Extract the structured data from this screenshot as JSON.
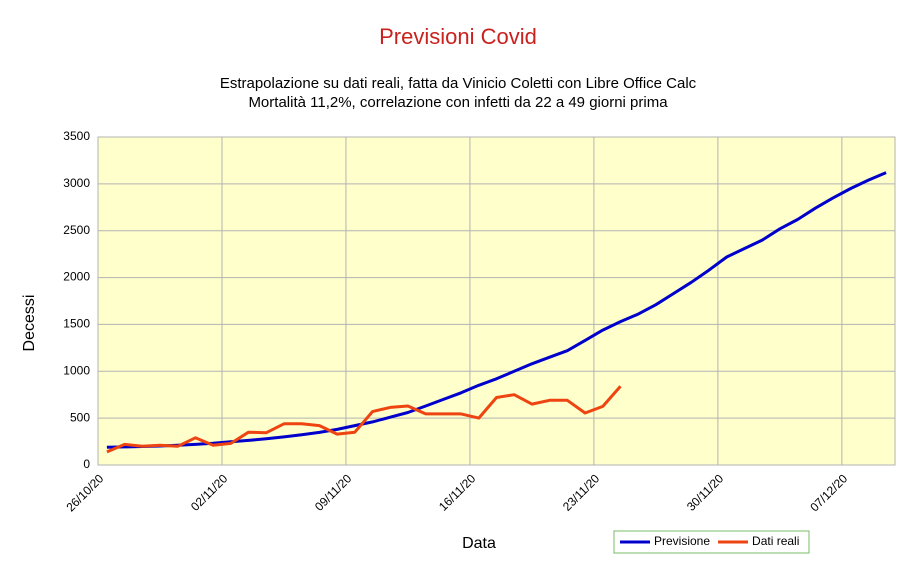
{
  "chart_data": {
    "type": "line",
    "title": "Previsioni Covid",
    "subtitle": [
      "Estrapolazione su dati reali, fatta da Vinicio Coletti con Libre Office Calc",
      "Mortalità 11,2%, correlazione con infetti da 22 a 49 giorni prima"
    ],
    "x_label": "Data",
    "y_label": "Decessi",
    "categories": [
      "26/10/20",
      null,
      null,
      null,
      null,
      null,
      null,
      "02/11/20",
      null,
      null,
      null,
      null,
      null,
      null,
      "09/11/20",
      null,
      null,
      null,
      null,
      null,
      null,
      "16/11/20",
      null,
      null,
      null,
      null,
      null,
      null,
      "23/11/20",
      null,
      null,
      null,
      null,
      null,
      null,
      "30/11/20",
      null,
      null,
      null,
      null,
      null,
      null,
      "07/12/20",
      null,
      null
    ],
    "series": [
      {
        "name": "Previsione",
        "color": "#0000cc",
        "values": [
          190,
          193,
          197,
          203,
          210,
          220,
          232,
          248,
          262,
          280,
          300,
          322,
          348,
          380,
          420,
          460,
          510,
          560,
          630,
          700,
          770,
          850,
          920,
          1000,
          1080,
          1150,
          1220,
          1330,
          1440,
          1530,
          1610,
          1710,
          1830,
          1950,
          2080,
          2220,
          2310,
          2400,
          2520,
          2620,
          2740,
          2850,
          2950,
          3040,
          3120
        ]
      },
      {
        "name": "Dati reali",
        "color": "#ee4411",
        "values": [
          140,
          220,
          200,
          210,
          200,
          290,
          210,
          230,
          350,
          345,
          440,
          440,
          420,
          330,
          350,
          570,
          615,
          630,
          545,
          545,
          545,
          500,
          720,
          750,
          650,
          690,
          690,
          555,
          625,
          840,
          null,
          null,
          null,
          null,
          null,
          null,
          null,
          null,
          null,
          null,
          null,
          null,
          null,
          null,
          null
        ]
      }
    ],
    "ylim": [
      0,
      3500
    ],
    "yticks": [
      0,
      500,
      1000,
      1500,
      2000,
      2500,
      3000,
      3500
    ],
    "grid": true,
    "plot_background": "#ffffcc",
    "legend": "bottom-right"
  }
}
